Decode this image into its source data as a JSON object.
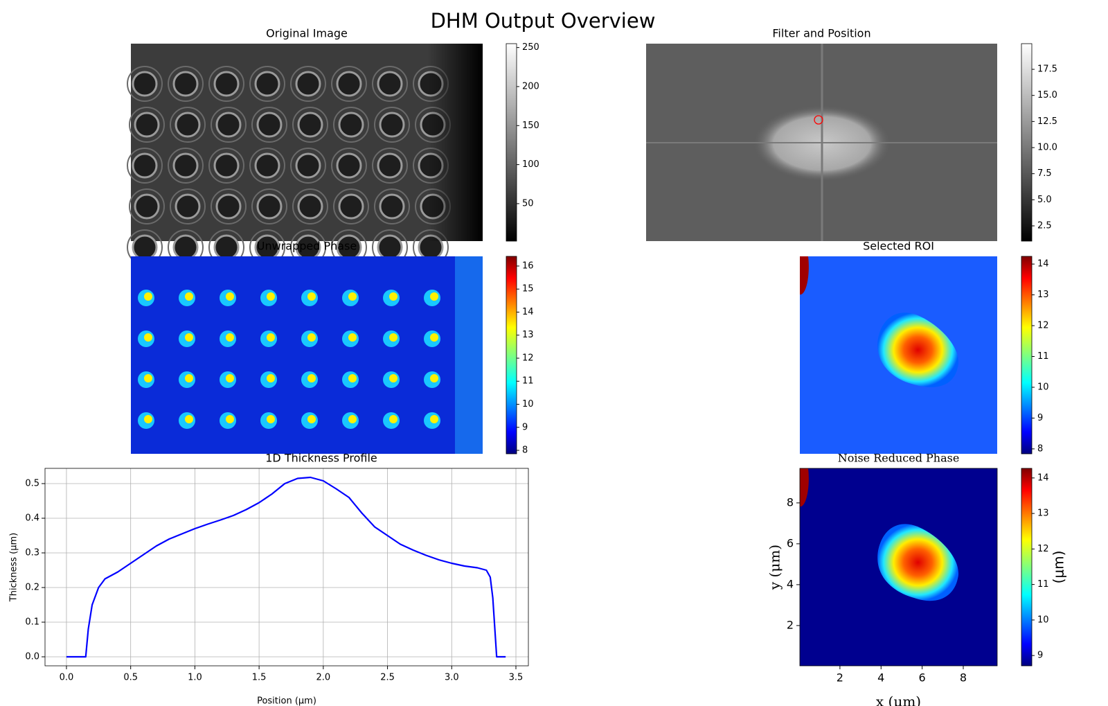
{
  "title": "DHM Output Overview",
  "chart_data": [
    {
      "type": "image",
      "title": "Original Image",
      "colormap": "gray",
      "clim": [
        2,
        255
      ],
      "cticks": [
        50,
        100,
        150,
        200,
        250
      ]
    },
    {
      "type": "image",
      "title": "Filter and Position",
      "colormap": "gray",
      "clim": [
        1.04,
        19.96
      ],
      "cticks": [
        2.5,
        {
          "value": 5,
          "label": "5.0"
        },
        7.5,
        {
          "value": 10,
          "label": "10.0"
        },
        12.5,
        {
          "value": 15,
          "label": "15.0"
        },
        17.5
      ]
    },
    {
      "type": "image",
      "title": "Unwrapped Phase",
      "colormap": "jet",
      "clim": [
        7.85,
        16.42
      ],
      "cticks": [
        8,
        9,
        10,
        11,
        12,
        13,
        14,
        15,
        16
      ]
    },
    {
      "type": "image",
      "title": "Selected ROI",
      "colormap": "jet",
      "clim": [
        7.84,
        14.25
      ],
      "cticks": [
        8,
        9,
        10,
        11,
        12,
        13,
        14
      ]
    },
    {
      "type": "image",
      "title": "Noise Reduced Phase",
      "colormap": "jet",
      "clim": [
        8.71,
        14.27
      ],
      "cticks": [
        9,
        10,
        11,
        12,
        13,
        14
      ],
      "clabel": "(μm)",
      "xlabel": "x (μm)",
      "ylabel": "y (μm)",
      "xlim": [
        0.05,
        9.65
      ],
      "ylim": [
        0.03,
        9.69
      ],
      "xticks": [
        2,
        4,
        6,
        8
      ],
      "yticks": [
        2,
        4,
        6,
        8
      ]
    },
    {
      "type": "line",
      "title": "1D Thickness Profile",
      "xlabel": "Position (μm)",
      "ylabel": "Thickness (μm)",
      "color": "#0000ff",
      "grid": true,
      "xlim": [
        -0.167,
        3.597
      ],
      "ylim": [
        -0.026,
        0.544
      ],
      "xticks": [
        {
          "value": 0,
          "label": "0.0"
        },
        0.5,
        {
          "value": 1,
          "label": "1.0"
        },
        1.5,
        {
          "value": 2,
          "label": "2.0"
        },
        2.5,
        {
          "value": 3,
          "label": "3.0"
        },
        3.5
      ],
      "yticks": [
        {
          "value": 0,
          "label": "0.0"
        },
        0.1,
        0.2,
        0.3,
        0.4,
        0.5
      ],
      "x": [
        0,
        0.15,
        0.17,
        0.2,
        0.25,
        0.3,
        0.4,
        0.5,
        0.6,
        0.7,
        0.8,
        0.9,
        1.0,
        1.1,
        1.2,
        1.3,
        1.4,
        1.5,
        1.6,
        1.7,
        1.8,
        1.9,
        2.0,
        2.1,
        2.2,
        2.3,
        2.4,
        2.5,
        2.6,
        2.7,
        2.8,
        2.9,
        3.0,
        3.1,
        3.2,
        3.27,
        3.3,
        3.32,
        3.35,
        3.42
      ],
      "values": [
        0,
        0,
        0.08,
        0.15,
        0.2,
        0.225,
        0.245,
        0.27,
        0.295,
        0.32,
        0.34,
        0.355,
        0.37,
        0.383,
        0.395,
        0.408,
        0.425,
        0.445,
        0.47,
        0.5,
        0.515,
        0.518,
        0.508,
        0.485,
        0.46,
        0.415,
        0.375,
        0.35,
        0.325,
        0.308,
        0.293,
        0.28,
        0.27,
        0.262,
        0.257,
        0.25,
        0.23,
        0.17,
        0,
        0
      ]
    }
  ]
}
